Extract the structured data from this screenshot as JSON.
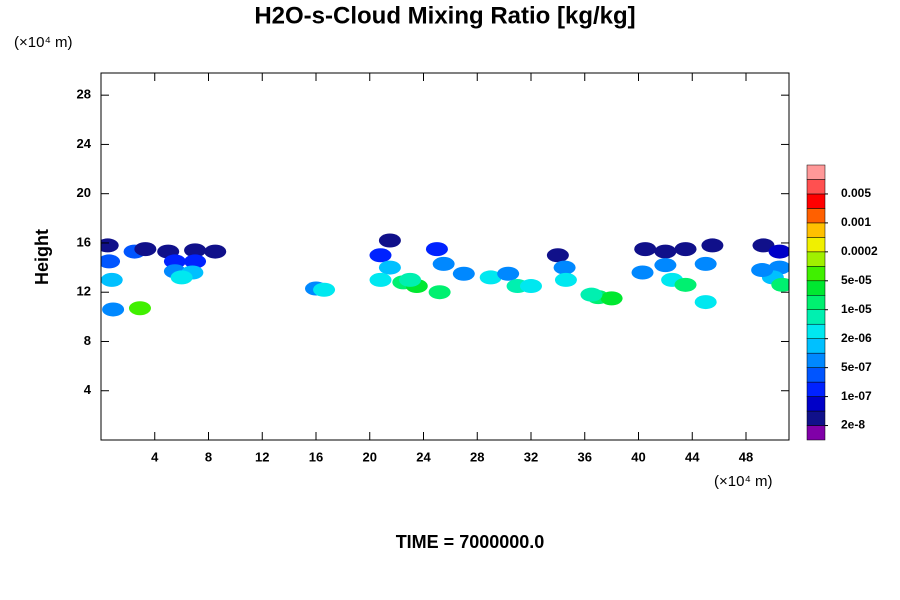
{
  "chart_data": {
    "type": "contour",
    "title": "H2O-s-Cloud Mixing Ratio [kg/kg]",
    "x_unit": "(×10⁴ m)",
    "y_unit": "(×10⁴ m)",
    "y_label": "Height",
    "footer": "TIME = 7000000.0",
    "xlim": [
      0,
      51.2
    ],
    "ylim": [
      0,
      29.8
    ],
    "xticks": [
      4,
      8,
      12,
      16,
      20,
      24,
      28,
      32,
      36,
      40,
      44,
      48
    ],
    "yticks": [
      4,
      8,
      12,
      16,
      20,
      24,
      28
    ],
    "colorbar": {
      "colors": [
        "#8000a8",
        "#10108a",
        "#0000c8",
        "#0022ff",
        "#0055ff",
        "#0088ff",
        "#00c0ff",
        "#00e8f0",
        "#00f0b0",
        "#00f070",
        "#00e830",
        "#40f000",
        "#a0f000",
        "#f0f000",
        "#ffc000",
        "#ff6000",
        "#ff0000",
        "#ff5050",
        "#ff9898"
      ],
      "ticks": [
        2e-08,
        {
          "value": 1e-07,
          "label": "1e-07"
        },
        {
          "value": 5e-07,
          "label": "5e-07"
        },
        {
          "value": 2e-06,
          "label": "2e-06"
        },
        {
          "value": 1e-05,
          "label": "1e-05"
        },
        {
          "value": 5e-05,
          "label": "5e-05"
        },
        0.0002,
        0.001,
        0.005
      ]
    },
    "x": [
      0.5,
      0.6,
      0.8,
      2.5,
      3.3,
      5,
      7,
      8.5,
      5.5,
      7,
      5.5,
      6.8,
      6,
      0.9,
      2.9,
      16,
      16.6,
      21.5,
      20.8,
      21.5,
      20.8,
      22.5,
      23.5,
      23,
      25,
      25.5,
      25.2,
      27,
      29,
      30.3,
      31,
      32,
      34,
      34.5,
      34.6,
      37,
      38,
      36.5,
      40.5,
      42,
      43.5,
      45.5,
      42,
      45,
      42.5,
      43.5,
      45,
      40.3,
      49.3,
      50.5,
      50.5,
      50,
      50.7,
      49.2
    ],
    "y": [
      15.8,
      14.5,
      13,
      15.3,
      15.5,
      15.3,
      15.4,
      15.3,
      14.5,
      14.5,
      13.7,
      13.6,
      13.2,
      10.6,
      10.7,
      12.3,
      12.2,
      16.2,
      15,
      14,
      13,
      12.8,
      12.5,
      13,
      15.5,
      14.3,
      12,
      13.5,
      13.2,
      13.5,
      12.5,
      12.5,
      15,
      14,
      13,
      11.6,
      11.5,
      11.8,
      15.5,
      15.3,
      15.5,
      15.8,
      14.2,
      14.3,
      13,
      12.6,
      11.2,
      13.6,
      15.8,
      15.3,
      14,
      13.2,
      12.6,
      13.8
    ],
    "values": [
      2e-08,
      3e-07,
      1e-06,
      3e-07,
      2e-08,
      2e-08,
      2e-08,
      2e-08,
      1e-07,
      1e-07,
      6e-07,
      1e-06,
      3e-06,
      5e-07,
      5e-05,
      6e-07,
      3e-06,
      2e-08,
      2e-07,
      1e-06,
      3e-06,
      1e-05,
      3e-05,
      5e-06,
      1e-07,
      6e-07,
      2e-05,
      6e-07,
      3e-06,
      8e-07,
      5e-06,
      3e-06,
      2e-08,
      5e-07,
      3e-06,
      1e-05,
      3e-05,
      5e-06,
      2e-08,
      2e-08,
      2e-08,
      2e-08,
      5e-07,
      6e-07,
      3e-06,
      1e-05,
      3e-06,
      8e-07,
      2e-08,
      5e-08,
      6e-07,
      1e-06,
      1e-05,
      7e-07
    ]
  }
}
